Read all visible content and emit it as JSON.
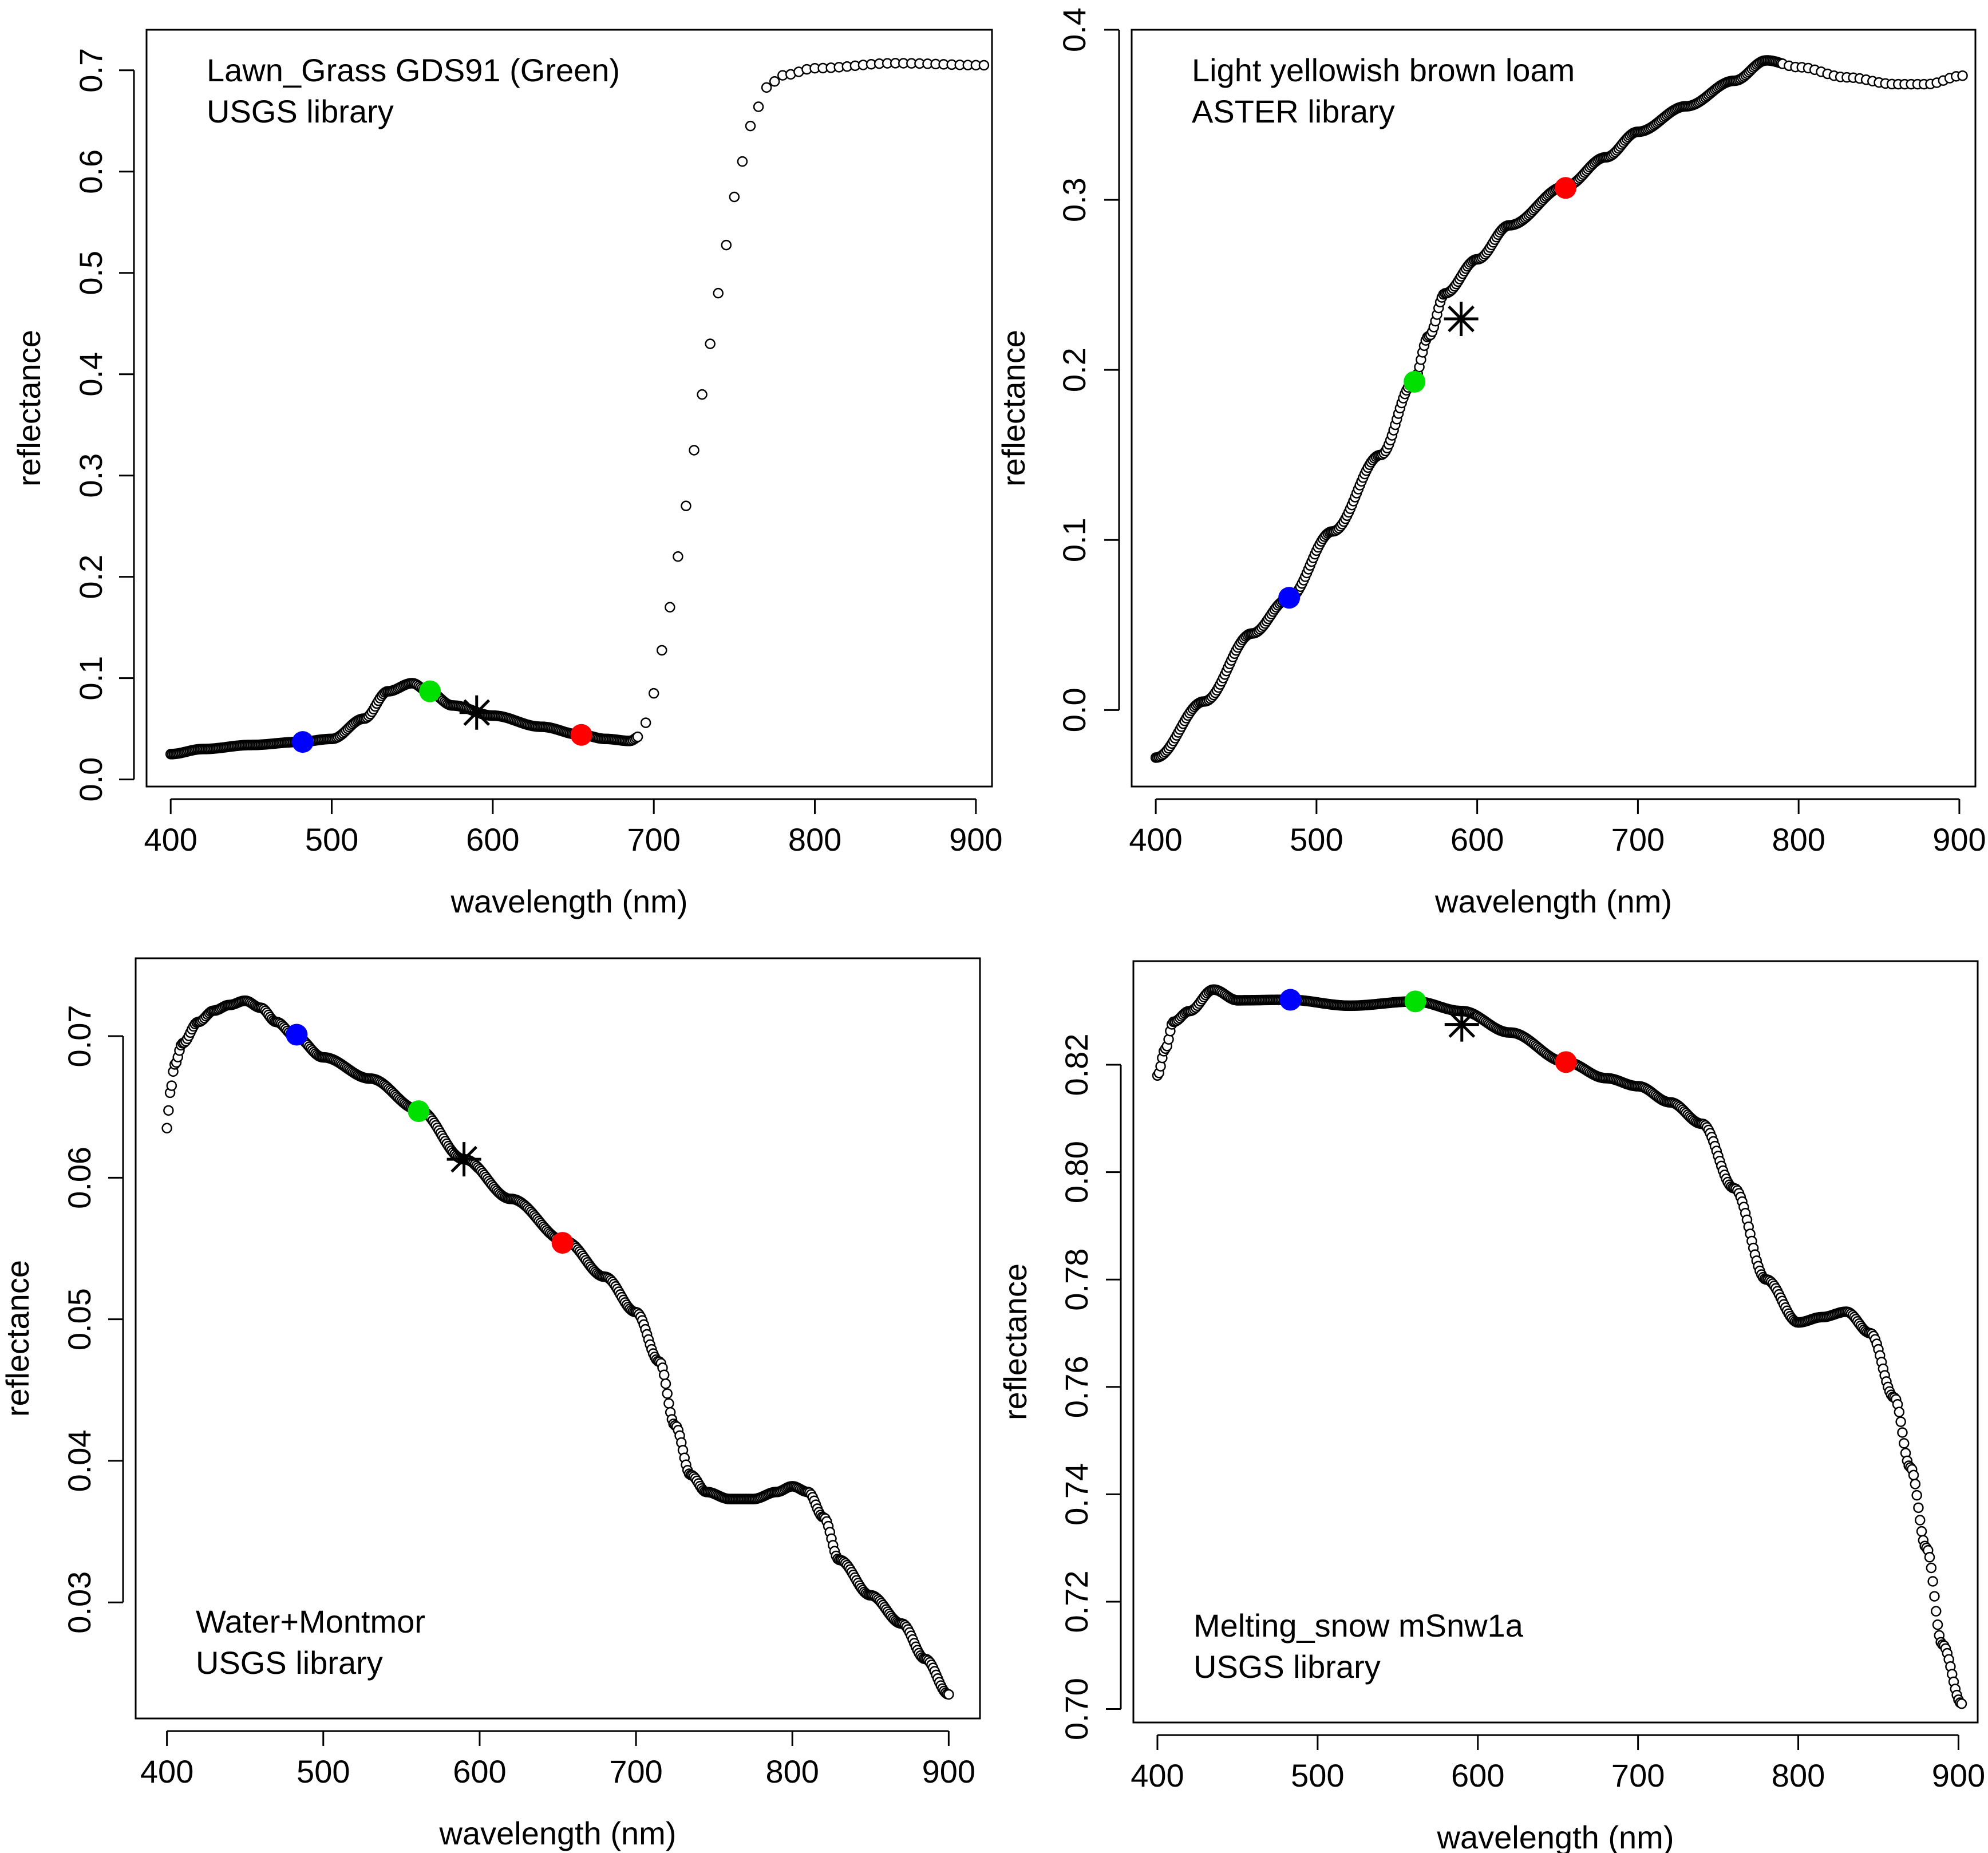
{
  "colors": {
    "marker_blue": "#0000ff",
    "marker_green": "#00e000",
    "marker_red": "#ff0000",
    "curve": "#000000",
    "background": "#ffffff"
  },
  "chart_data": [
    {
      "type": "scatter",
      "annotation": [
        "Lawn_Grass GDS91 (Green)",
        "USGS library"
      ],
      "annotation_position": "top-left",
      "xlabel": "wavelength (nm)",
      "ylabel": "reflectance",
      "xlim": [
        385,
        910
      ],
      "ylim": [
        -0.007,
        0.74
      ],
      "x_ticks": [
        400,
        500,
        600,
        700,
        800,
        900
      ],
      "y_ticks": [
        0.0,
        0.1,
        0.2,
        0.3,
        0.4,
        0.5,
        0.6,
        0.7
      ],
      "y_tick_labels": [
        "0.0",
        "0.1",
        "0.2",
        "0.3",
        "0.4",
        "0.5",
        "0.6",
        "0.7"
      ],
      "grid": false,
      "series_spacing_nm": {
        "dense_until": 690,
        "dense": 1,
        "sparse": 5
      },
      "series_anchors": {
        "x": [
          400,
          420,
          450,
          480,
          500,
          520,
          535,
          550,
          560,
          575,
          600,
          630,
          655,
          670,
          685,
          692,
          700,
          710,
          720,
          730,
          740,
          750,
          760,
          770,
          780,
          800,
          850,
          905
        ],
        "y": [
          0.025,
          0.03,
          0.034,
          0.037,
          0.04,
          0.06,
          0.087,
          0.095,
          0.087,
          0.073,
          0.063,
          0.052,
          0.044,
          0.04,
          0.038,
          0.043,
          0.085,
          0.17,
          0.27,
          0.38,
          0.48,
          0.575,
          0.645,
          0.683,
          0.695,
          0.702,
          0.707,
          0.705
        ]
      },
      "highlight_points": [
        {
          "band": "blue",
          "x": 482,
          "y": 0.037
        },
        {
          "band": "green",
          "x": 561,
          "y": 0.087
        },
        {
          "band": "red",
          "x": 655,
          "y": 0.044
        }
      ],
      "star_point": {
        "x": 590,
        "y": 0.066
      }
    },
    {
      "type": "scatter",
      "annotation": [
        "Light yellowish brown loam",
        "ASTER library"
      ],
      "annotation_position": "top-left",
      "xlabel": "wavelength (nm)",
      "ylabel": "reflectance",
      "xlim": [
        385,
        910
      ],
      "ylim": [
        -0.045,
        0.4
      ],
      "x_ticks": [
        400,
        500,
        600,
        700,
        800,
        900
      ],
      "y_ticks": [
        0.0,
        0.1,
        0.2,
        0.3,
        0.4
      ],
      "y_tick_labels": [
        "0.0",
        "0.1",
        "0.2",
        "0.3",
        "0.4"
      ],
      "grid": false,
      "series_spacing_nm": {
        "dense_until": 790,
        "dense": 1,
        "sparse": 4
      },
      "series_anchors": {
        "x": [
          400,
          430,
          460,
          482,
          510,
          540,
          560,
          570,
          580,
          600,
          620,
          655,
          680,
          700,
          730,
          760,
          780,
          800,
          830,
          860,
          880,
          902
        ],
        "y": [
          -0.028,
          0.005,
          0.045,
          0.065,
          0.105,
          0.15,
          0.192,
          0.22,
          0.245,
          0.265,
          0.285,
          0.308,
          0.325,
          0.34,
          0.355,
          0.37,
          0.382,
          0.378,
          0.372,
          0.368,
          0.368,
          0.373
        ]
      },
      "highlight_points": [
        {
          "band": "blue",
          "x": 483,
          "y": 0.066
        },
        {
          "band": "green",
          "x": 561,
          "y": 0.193
        },
        {
          "band": "red",
          "x": 655,
          "y": 0.307
        }
      ],
      "star_point": {
        "x": 590,
        "y": 0.23
      }
    },
    {
      "type": "scatter",
      "annotation": [
        "Water+Montmor",
        "USGS library"
      ],
      "annotation_position": "bottom-left",
      "xlabel": "wavelength (nm)",
      "ylabel": "reflectance",
      "xlim": [
        380,
        920
      ],
      "ylim": [
        0.0218,
        0.0755
      ],
      "x_ticks": [
        400,
        500,
        600,
        700,
        800,
        900
      ],
      "y_ticks": [
        0.03,
        0.04,
        0.05,
        0.06,
        0.07
      ],
      "y_tick_labels": [
        "0.03",
        "0.04",
        "0.05",
        "0.06",
        "0.07"
      ],
      "grid": false,
      "series_spacing_nm": {
        "dense_until": 920,
        "dense": 1,
        "sparse": 1
      },
      "series_anchors": {
        "x": [
          400,
          402,
          405,
          410,
          420,
          430,
          440,
          450,
          460,
          470,
          482,
          500,
          530,
          561,
          590,
          620,
          655,
          680,
          700,
          715,
          725,
          735,
          745,
          760,
          775,
          790,
          800,
          810,
          820,
          830,
          850,
          870,
          885,
          900
        ],
        "y": [
          0.0635,
          0.066,
          0.068,
          0.0695,
          0.071,
          0.0718,
          0.0722,
          0.0725,
          0.072,
          0.071,
          0.07,
          0.0685,
          0.067,
          0.0648,
          0.0613,
          0.0585,
          0.0555,
          0.053,
          0.0505,
          0.047,
          0.0425,
          0.039,
          0.0378,
          0.0373,
          0.0373,
          0.0378,
          0.0382,
          0.0378,
          0.036,
          0.033,
          0.0305,
          0.0285,
          0.026,
          0.0235
        ]
      },
      "highlight_points": [
        {
          "band": "blue",
          "x": 483,
          "y": 0.0701
        },
        {
          "band": "green",
          "x": 561,
          "y": 0.0647
        },
        {
          "band": "red",
          "x": 653,
          "y": 0.0554
        }
      ],
      "star_point": {
        "x": 590,
        "y": 0.0613
      }
    },
    {
      "type": "scatter",
      "annotation": [
        "Melting_snow mSnw1a",
        "USGS library"
      ],
      "annotation_position": "bottom-left",
      "xlabel": "wavelength (nm)",
      "ylabel": "reflectance",
      "xlim": [
        385,
        912
      ],
      "ylim": [
        0.6975,
        0.8393
      ],
      "x_ticks": [
        400,
        500,
        600,
        700,
        800,
        900
      ],
      "y_ticks": [
        0.7,
        0.72,
        0.74,
        0.76,
        0.78,
        0.8,
        0.82
      ],
      "y_tick_labels": [
        "0.70",
        "0.72",
        "0.74",
        "0.76",
        "0.78",
        "0.80",
        "0.82"
      ],
      "grid": false,
      "series_spacing_nm": {
        "dense_until": 912,
        "dense": 1,
        "sparse": 1
      },
      "series_anchors": {
        "x": [
          400,
          405,
          410,
          420,
          435,
          450,
          482,
          520,
          561,
          590,
          620,
          655,
          680,
          700,
          720,
          740,
          760,
          780,
          800,
          815,
          830,
          845,
          860,
          870,
          880,
          890,
          902
        ],
        "y": [
          0.818,
          0.823,
          0.828,
          0.83,
          0.834,
          0.832,
          0.8321,
          0.831,
          0.8318,
          0.83,
          0.826,
          0.8205,
          0.8175,
          0.816,
          0.813,
          0.809,
          0.797,
          0.78,
          0.772,
          0.773,
          0.774,
          0.77,
          0.758,
          0.745,
          0.73,
          0.712,
          0.701
        ]
      },
      "highlight_points": [
        {
          "band": "blue",
          "x": 483,
          "y": 0.8321
        },
        {
          "band": "green",
          "x": 561,
          "y": 0.8318
        },
        {
          "band": "red",
          "x": 655,
          "y": 0.8205
        }
      ],
      "star_point": {
        "x": 590,
        "y": 0.8275
      }
    }
  ]
}
